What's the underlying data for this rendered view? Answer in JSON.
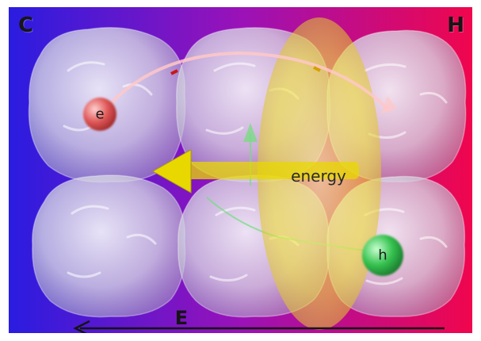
{
  "corner_labels": {
    "left": "C",
    "right": "H"
  },
  "particles": {
    "electron": {
      "label": "e",
      "color": "#e05858"
    },
    "hole": {
      "label": "h",
      "color": "#35c24f"
    }
  },
  "energy_label": "energy",
  "field_label": "E",
  "colors": {
    "background_left": "#2a1ce0",
    "background_mid": "#9a12b8",
    "background_right": "#f0064d",
    "energy_ellipse": "#f2e63a",
    "arrow": "#e8d800",
    "cluster": "#dcdce6"
  }
}
